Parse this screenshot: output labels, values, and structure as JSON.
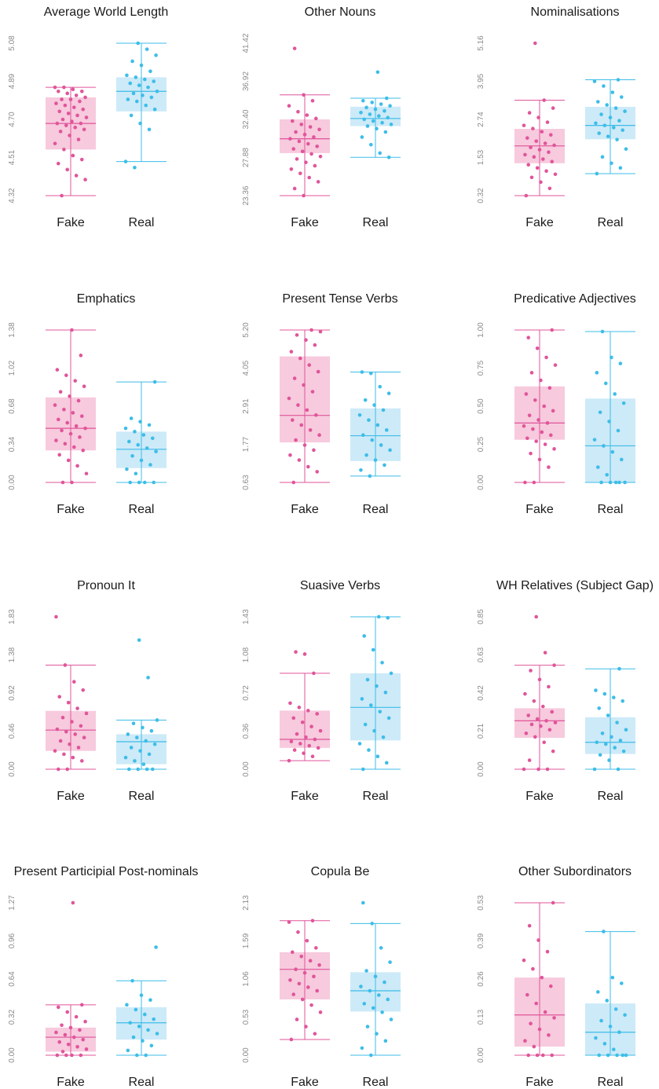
{
  "colors": {
    "fake_box": "#f7cadd",
    "fake_line": "#e0559a",
    "fake_dot": "#e0559a",
    "real_box": "#cdeaf8",
    "real_line": "#3dbde8",
    "real_dot": "#3dbde8",
    "tick_text": "#8a8a8a"
  },
  "chart_data": [
    {
      "type": "box",
      "title": "Average World Length",
      "categories": [
        "Fake",
        "Real"
      ],
      "yticks": [
        "4.32",
        "4.51",
        "4.70",
        "4.89",
        "5.08"
      ],
      "ylim": [
        4.32,
        5.08
      ],
      "series": [
        {
          "name": "Fake",
          "min": 4.32,
          "q1": 4.55,
          "median": 4.68,
          "q3": 4.81,
          "max": 4.86,
          "points": [
            4.86,
            4.86,
            4.85,
            4.84,
            4.84,
            4.83,
            4.82,
            4.81,
            4.8,
            4.8,
            4.79,
            4.78,
            4.77,
            4.76,
            4.75,
            4.74,
            4.73,
            4.72,
            4.71,
            4.7,
            4.69,
            4.68,
            4.68,
            4.67,
            4.66,
            4.65,
            4.64,
            4.62,
            4.6,
            4.58,
            4.55,
            4.52,
            4.5,
            4.48,
            4.45,
            4.42,
            4.4,
            4.32
          ]
        },
        {
          "name": "Real",
          "min": 4.49,
          "q1": 4.74,
          "median": 4.84,
          "q3": 4.91,
          "max": 5.08,
          "points": [
            5.08,
            5.05,
            5.02,
            4.99,
            4.97,
            4.94,
            4.92,
            4.91,
            4.9,
            4.89,
            4.88,
            4.87,
            4.86,
            4.84,
            4.83,
            4.82,
            4.81,
            4.8,
            4.79,
            4.77,
            4.75,
            4.72,
            4.68,
            4.65,
            4.49,
            4.46
          ]
        }
      ]
    },
    {
      "type": "box",
      "title": "Other Nouns",
      "categories": [
        "Fake",
        "Real"
      ],
      "yticks": [
        "23.36",
        "27.88",
        "32.40",
        "36.92",
        "41.42"
      ],
      "ylim": [
        23.36,
        41.42
      ],
      "series": [
        {
          "name": "Fake",
          "min": 23.36,
          "q1": 28.4,
          "median": 30.1,
          "q3": 32.4,
          "max": 35.3,
          "points": [
            40.8,
            35.3,
            34.6,
            34.0,
            33.3,
            32.9,
            32.5,
            32.2,
            31.8,
            31.5,
            31.2,
            30.9,
            30.6,
            30.3,
            30.1,
            29.8,
            29.5,
            29.2,
            28.9,
            28.6,
            28.3,
            28.0,
            27.7,
            27.3,
            26.9,
            26.5,
            26.0,
            25.5,
            25.0,
            24.2,
            23.36
          ]
        },
        {
          "name": "Real",
          "min": 27.9,
          "q1": 31.6,
          "median": 32.5,
          "q3": 33.9,
          "max": 34.9,
          "points": [
            38.0,
            34.9,
            34.6,
            34.4,
            34.2,
            34.0,
            33.8,
            33.6,
            33.4,
            33.2,
            33.0,
            32.8,
            32.6,
            32.4,
            32.2,
            32.0,
            31.8,
            31.6,
            31.3,
            30.9,
            30.3,
            29.4,
            28.4,
            27.9
          ]
        }
      ]
    },
    {
      "type": "box",
      "title": "Nominalisations",
      "categories": [
        "Fake",
        "Real"
      ],
      "yticks": [
        "0.32",
        "1.53",
        "2.74",
        "3.95",
        "5.16"
      ],
      "ylim": [
        0.32,
        5.16
      ],
      "series": [
        {
          "name": "Fake",
          "min": 0.32,
          "q1": 1.35,
          "median": 1.9,
          "q3": 2.44,
          "max": 3.35,
          "points": [
            5.16,
            3.35,
            3.1,
            2.95,
            2.8,
            2.65,
            2.55,
            2.45,
            2.35,
            2.25,
            2.15,
            2.05,
            1.98,
            1.92,
            1.85,
            1.78,
            1.7,
            1.62,
            1.55,
            1.48,
            1.4,
            1.3,
            1.2,
            1.1,
            1.0,
            0.9,
            0.75,
            0.55,
            0.32
          ]
        },
        {
          "name": "Real",
          "min": 1.02,
          "q1": 2.11,
          "median": 2.55,
          "q3": 3.14,
          "max": 4.0,
          "points": [
            4.0,
            3.95,
            3.8,
            3.6,
            3.45,
            3.3,
            3.2,
            3.1,
            3.0,
            2.9,
            2.8,
            2.7,
            2.62,
            2.55,
            2.48,
            2.4,
            2.3,
            2.2,
            2.1,
            1.8,
            1.55,
            1.35,
            1.2,
            1.02
          ]
        }
      ]
    },
    {
      "type": "box",
      "title": "Emphatics",
      "categories": [
        "Fake",
        "Real"
      ],
      "yticks": [
        "0.00",
        "0.34",
        "0.68",
        "1.02",
        "1.38"
      ],
      "ylim": [
        0,
        1.38
      ],
      "series": [
        {
          "name": "Fake",
          "min": 0.0,
          "q1": 0.29,
          "median": 0.49,
          "q3": 0.77,
          "max": 1.38,
          "points": [
            1.38,
            1.15,
            1.02,
            0.97,
            0.92,
            0.87,
            0.82,
            0.78,
            0.74,
            0.7,
            0.66,
            0.63,
            0.6,
            0.57,
            0.54,
            0.51,
            0.49,
            0.47,
            0.44,
            0.41,
            0.38,
            0.35,
            0.32,
            0.29,
            0.25,
            0.2,
            0.15,
            0.08,
            0.0,
            0.0
          ]
        },
        {
          "name": "Real",
          "min": 0.0,
          "q1": 0.13,
          "median": 0.3,
          "q3": 0.46,
          "max": 0.91,
          "points": [
            0.91,
            0.58,
            0.55,
            0.52,
            0.49,
            0.46,
            0.43,
            0.4,
            0.37,
            0.34,
            0.31,
            0.28,
            0.24,
            0.2,
            0.16,
            0.12,
            0.08,
            0.0,
            0.0,
            0.0,
            0.0
          ]
        }
      ]
    },
    {
      "type": "box",
      "title": "Present Tense Verbs",
      "categories": [
        "Fake",
        "Real"
      ],
      "yticks": [
        "0.63",
        "1.77",
        "2.91",
        "4.05",
        "5.20"
      ],
      "ylim": [
        0.63,
        5.2
      ],
      "series": [
        {
          "name": "Fake",
          "min": 0.63,
          "q1": 1.83,
          "median": 2.64,
          "q3": 4.41,
          "max": 5.2,
          "points": [
            5.2,
            5.15,
            5.05,
            4.9,
            4.75,
            4.55,
            4.35,
            4.15,
            3.95,
            3.75,
            3.55,
            3.35,
            3.15,
            2.95,
            2.8,
            2.65,
            2.5,
            2.35,
            2.2,
            2.05,
            1.9,
            1.75,
            1.6,
            1.45,
            1.3,
            1.1,
            0.95,
            0.63
          ]
        },
        {
          "name": "Real",
          "min": 0.82,
          "q1": 1.27,
          "median": 2.03,
          "q3": 2.85,
          "max": 3.94,
          "points": [
            3.94,
            3.9,
            3.5,
            3.3,
            3.1,
            2.95,
            2.8,
            2.65,
            2.5,
            2.35,
            2.2,
            2.05,
            1.9,
            1.75,
            1.6,
            1.45,
            1.3,
            1.15,
            1.0,
            0.82
          ]
        }
      ]
    },
    {
      "type": "box",
      "title": "Predicative Adjectives",
      "categories": [
        "Fake",
        "Real"
      ],
      "yticks": [
        "0.00",
        "0.25",
        "0.50",
        "0.75",
        "1.00"
      ],
      "ylim": [
        0,
        1.0
      ],
      "series": [
        {
          "name": "Fake",
          "min": 0.0,
          "q1": 0.28,
          "median": 0.39,
          "q3": 0.63,
          "max": 1.0,
          "points": [
            1.0,
            0.95,
            0.88,
            0.82,
            0.77,
            0.72,
            0.67,
            0.62,
            0.58,
            0.54,
            0.5,
            0.47,
            0.44,
            0.41,
            0.39,
            0.37,
            0.35,
            0.33,
            0.31,
            0.29,
            0.27,
            0.25,
            0.22,
            0.19,
            0.15,
            0.1,
            0.0,
            0.0
          ]
        },
        {
          "name": "Real",
          "min": 0.0,
          "q1": 0.0,
          "median": 0.24,
          "q3": 0.55,
          "max": 0.99,
          "points": [
            0.99,
            0.82,
            0.78,
            0.72,
            0.65,
            0.58,
            0.52,
            0.46,
            0.4,
            0.34,
            0.28,
            0.24,
            0.2,
            0.15,
            0.1,
            0.05,
            0.0,
            0.0,
            0.0,
            0.0,
            0.0
          ]
        }
      ]
    },
    {
      "type": "box",
      "title": "Pronoun It",
      "categories": [
        "Fake",
        "Real"
      ],
      "yticks": [
        "0.00",
        "0.46",
        "0.92",
        "1.38",
        "1.83"
      ],
      "ylim": [
        0,
        1.83
      ],
      "series": [
        {
          "name": "Fake",
          "min": 0.0,
          "q1": 0.22,
          "median": 0.47,
          "q3": 0.7,
          "max": 1.25,
          "points": [
            1.83,
            1.25,
            1.05,
            0.95,
            0.87,
            0.8,
            0.73,
            0.67,
            0.62,
            0.57,
            0.52,
            0.48,
            0.45,
            0.42,
            0.38,
            0.34,
            0.3,
            0.26,
            0.22,
            0.18,
            0.14,
            0.1,
            0.0,
            0.0
          ]
        },
        {
          "name": "Real",
          "min": 0.0,
          "q1": 0.06,
          "median": 0.33,
          "q3": 0.42,
          "max": 0.59,
          "points": [
            1.55,
            1.1,
            0.59,
            0.55,
            0.5,
            0.46,
            0.42,
            0.38,
            0.34,
            0.3,
            0.26,
            0.22,
            0.18,
            0.14,
            0.1,
            0.06,
            0.0,
            0.0,
            0.0,
            0.0
          ]
        }
      ]
    },
    {
      "type": "box",
      "title": "Suasive Verbs",
      "categories": [
        "Fake",
        "Real"
      ],
      "yticks": [
        "0.00",
        "0.36",
        "0.72",
        "1.08",
        "1.43"
      ],
      "ylim": [
        0,
        1.43
      ],
      "series": [
        {
          "name": "Fake",
          "min": 0.08,
          "q1": 0.2,
          "median": 0.28,
          "q3": 0.55,
          "max": 0.9,
          "points": [
            1.1,
            1.08,
            0.9,
            0.62,
            0.58,
            0.55,
            0.52,
            0.48,
            0.44,
            0.4,
            0.36,
            0.33,
            0.3,
            0.28,
            0.26,
            0.24,
            0.22,
            0.2,
            0.18,
            0.15,
            0.12,
            0.08
          ]
        },
        {
          "name": "Real",
          "min": 0.0,
          "q1": 0.27,
          "median": 0.58,
          "q3": 0.9,
          "max": 1.43,
          "points": [
            1.43,
            1.42,
            1.25,
            1.12,
            1.0,
            0.9,
            0.84,
            0.78,
            0.72,
            0.66,
            0.6,
            0.54,
            0.48,
            0.42,
            0.36,
            0.3,
            0.24,
            0.18,
            0.12,
            0.06,
            0.0
          ]
        }
      ]
    },
    {
      "type": "box",
      "title": "WH Relatives (Subject Gap)",
      "categories": [
        "Fake",
        "Real"
      ],
      "yticks": [
        "0.00",
        "0.21",
        "0.42",
        "0.63",
        "0.85"
      ],
      "ylim": [
        0,
        0.85
      ],
      "series": [
        {
          "name": "Fake",
          "min": 0.0,
          "q1": 0.175,
          "median": 0.27,
          "q3": 0.34,
          "max": 0.58,
          "points": [
            0.85,
            0.65,
            0.58,
            0.55,
            0.5,
            0.46,
            0.42,
            0.38,
            0.35,
            0.32,
            0.3,
            0.28,
            0.27,
            0.26,
            0.25,
            0.24,
            0.22,
            0.2,
            0.18,
            0.15,
            0.1,
            0.05,
            0.0,
            0.0,
            0.0
          ]
        },
        {
          "name": "Real",
          "min": 0.0,
          "q1": 0.085,
          "median": 0.15,
          "q3": 0.29,
          "max": 0.56,
          "points": [
            0.56,
            0.44,
            0.42,
            0.4,
            0.38,
            0.34,
            0.3,
            0.26,
            0.22,
            0.2,
            0.18,
            0.16,
            0.15,
            0.14,
            0.12,
            0.1,
            0.08,
            0.05,
            0.0,
            0.0
          ]
        }
      ]
    },
    {
      "type": "box",
      "title": "Present Participial Post-nominals",
      "categories": [
        "Fake",
        "Real"
      ],
      "yticks": [
        "0.00",
        "0.32",
        "0.64",
        "0.96",
        "1.27"
      ],
      "ylim": [
        0,
        1.27
      ],
      "series": [
        {
          "name": "Fake",
          "min": 0.0,
          "q1": 0.03,
          "median": 0.15,
          "q3": 0.23,
          "max": 0.42,
          "points": [
            1.27,
            0.42,
            0.4,
            0.36,
            0.32,
            0.28,
            0.25,
            0.23,
            0.21,
            0.19,
            0.17,
            0.15,
            0.13,
            0.11,
            0.09,
            0.07,
            0.05,
            0.03,
            0.0,
            0.0,
            0.0,
            0.0
          ]
        },
        {
          "name": "Real",
          "min": 0.0,
          "q1": 0.13,
          "median": 0.27,
          "q3": 0.4,
          "max": 0.62,
          "points": [
            0.9,
            0.62,
            0.5,
            0.46,
            0.42,
            0.38,
            0.34,
            0.3,
            0.27,
            0.24,
            0.21,
            0.18,
            0.15,
            0.12,
            0.08,
            0.04,
            0.0,
            0.0
          ]
        }
      ]
    },
    {
      "type": "box",
      "title": "Copula Be",
      "categories": [
        "Fake",
        "Real"
      ],
      "yticks": [
        "0.00",
        "0.53",
        "1.06",
        "1.59",
        "2.13"
      ],
      "ylim": [
        0,
        2.13
      ],
      "series": [
        {
          "name": "Fake",
          "min": 0.22,
          "q1": 0.78,
          "median": 1.2,
          "q3": 1.44,
          "max": 1.88,
          "points": [
            1.88,
            1.86,
            1.72,
            1.6,
            1.5,
            1.44,
            1.38,
            1.32,
            1.26,
            1.2,
            1.15,
            1.1,
            1.05,
            1.0,
            0.95,
            0.9,
            0.85,
            0.78,
            0.7,
            0.6,
            0.5,
            0.4,
            0.3,
            0.22
          ]
        },
        {
          "name": "Real",
          "min": 0.0,
          "q1": 0.61,
          "median": 0.9,
          "q3": 1.16,
          "max": 1.84,
          "points": [
            2.13,
            1.84,
            1.5,
            1.3,
            1.18,
            1.1,
            1.02,
            0.96,
            0.9,
            0.84,
            0.78,
            0.72,
            0.66,
            0.6,
            0.5,
            0.4,
            0.3,
            0.2,
            0.1,
            0.0
          ]
        }
      ]
    },
    {
      "type": "box",
      "title": "Other Subordinators",
      "categories": [
        "Fake",
        "Real"
      ],
      "yticks": [
        "0.00",
        "0.13",
        "0.26",
        "0.39",
        "0.53"
      ],
      "ylim": [
        0,
        0.53
      ],
      "series": [
        {
          "name": "Fake",
          "min": 0.0,
          "q1": 0.03,
          "median": 0.14,
          "q3": 0.27,
          "max": 0.53,
          "points": [
            0.53,
            0.45,
            0.4,
            0.36,
            0.33,
            0.3,
            0.27,
            0.24,
            0.21,
            0.18,
            0.15,
            0.13,
            0.11,
            0.09,
            0.07,
            0.05,
            0.03,
            0.0,
            0.0,
            0.0,
            0.0
          ]
        },
        {
          "name": "Real",
          "min": 0.0,
          "q1": 0.0,
          "median": 0.08,
          "q3": 0.18,
          "max": 0.43,
          "points": [
            0.43,
            0.27,
            0.25,
            0.22,
            0.19,
            0.16,
            0.14,
            0.12,
            0.1,
            0.08,
            0.06,
            0.04,
            0.02,
            0.0,
            0.0,
            0.0,
            0.0,
            0.0
          ]
        }
      ]
    }
  ]
}
